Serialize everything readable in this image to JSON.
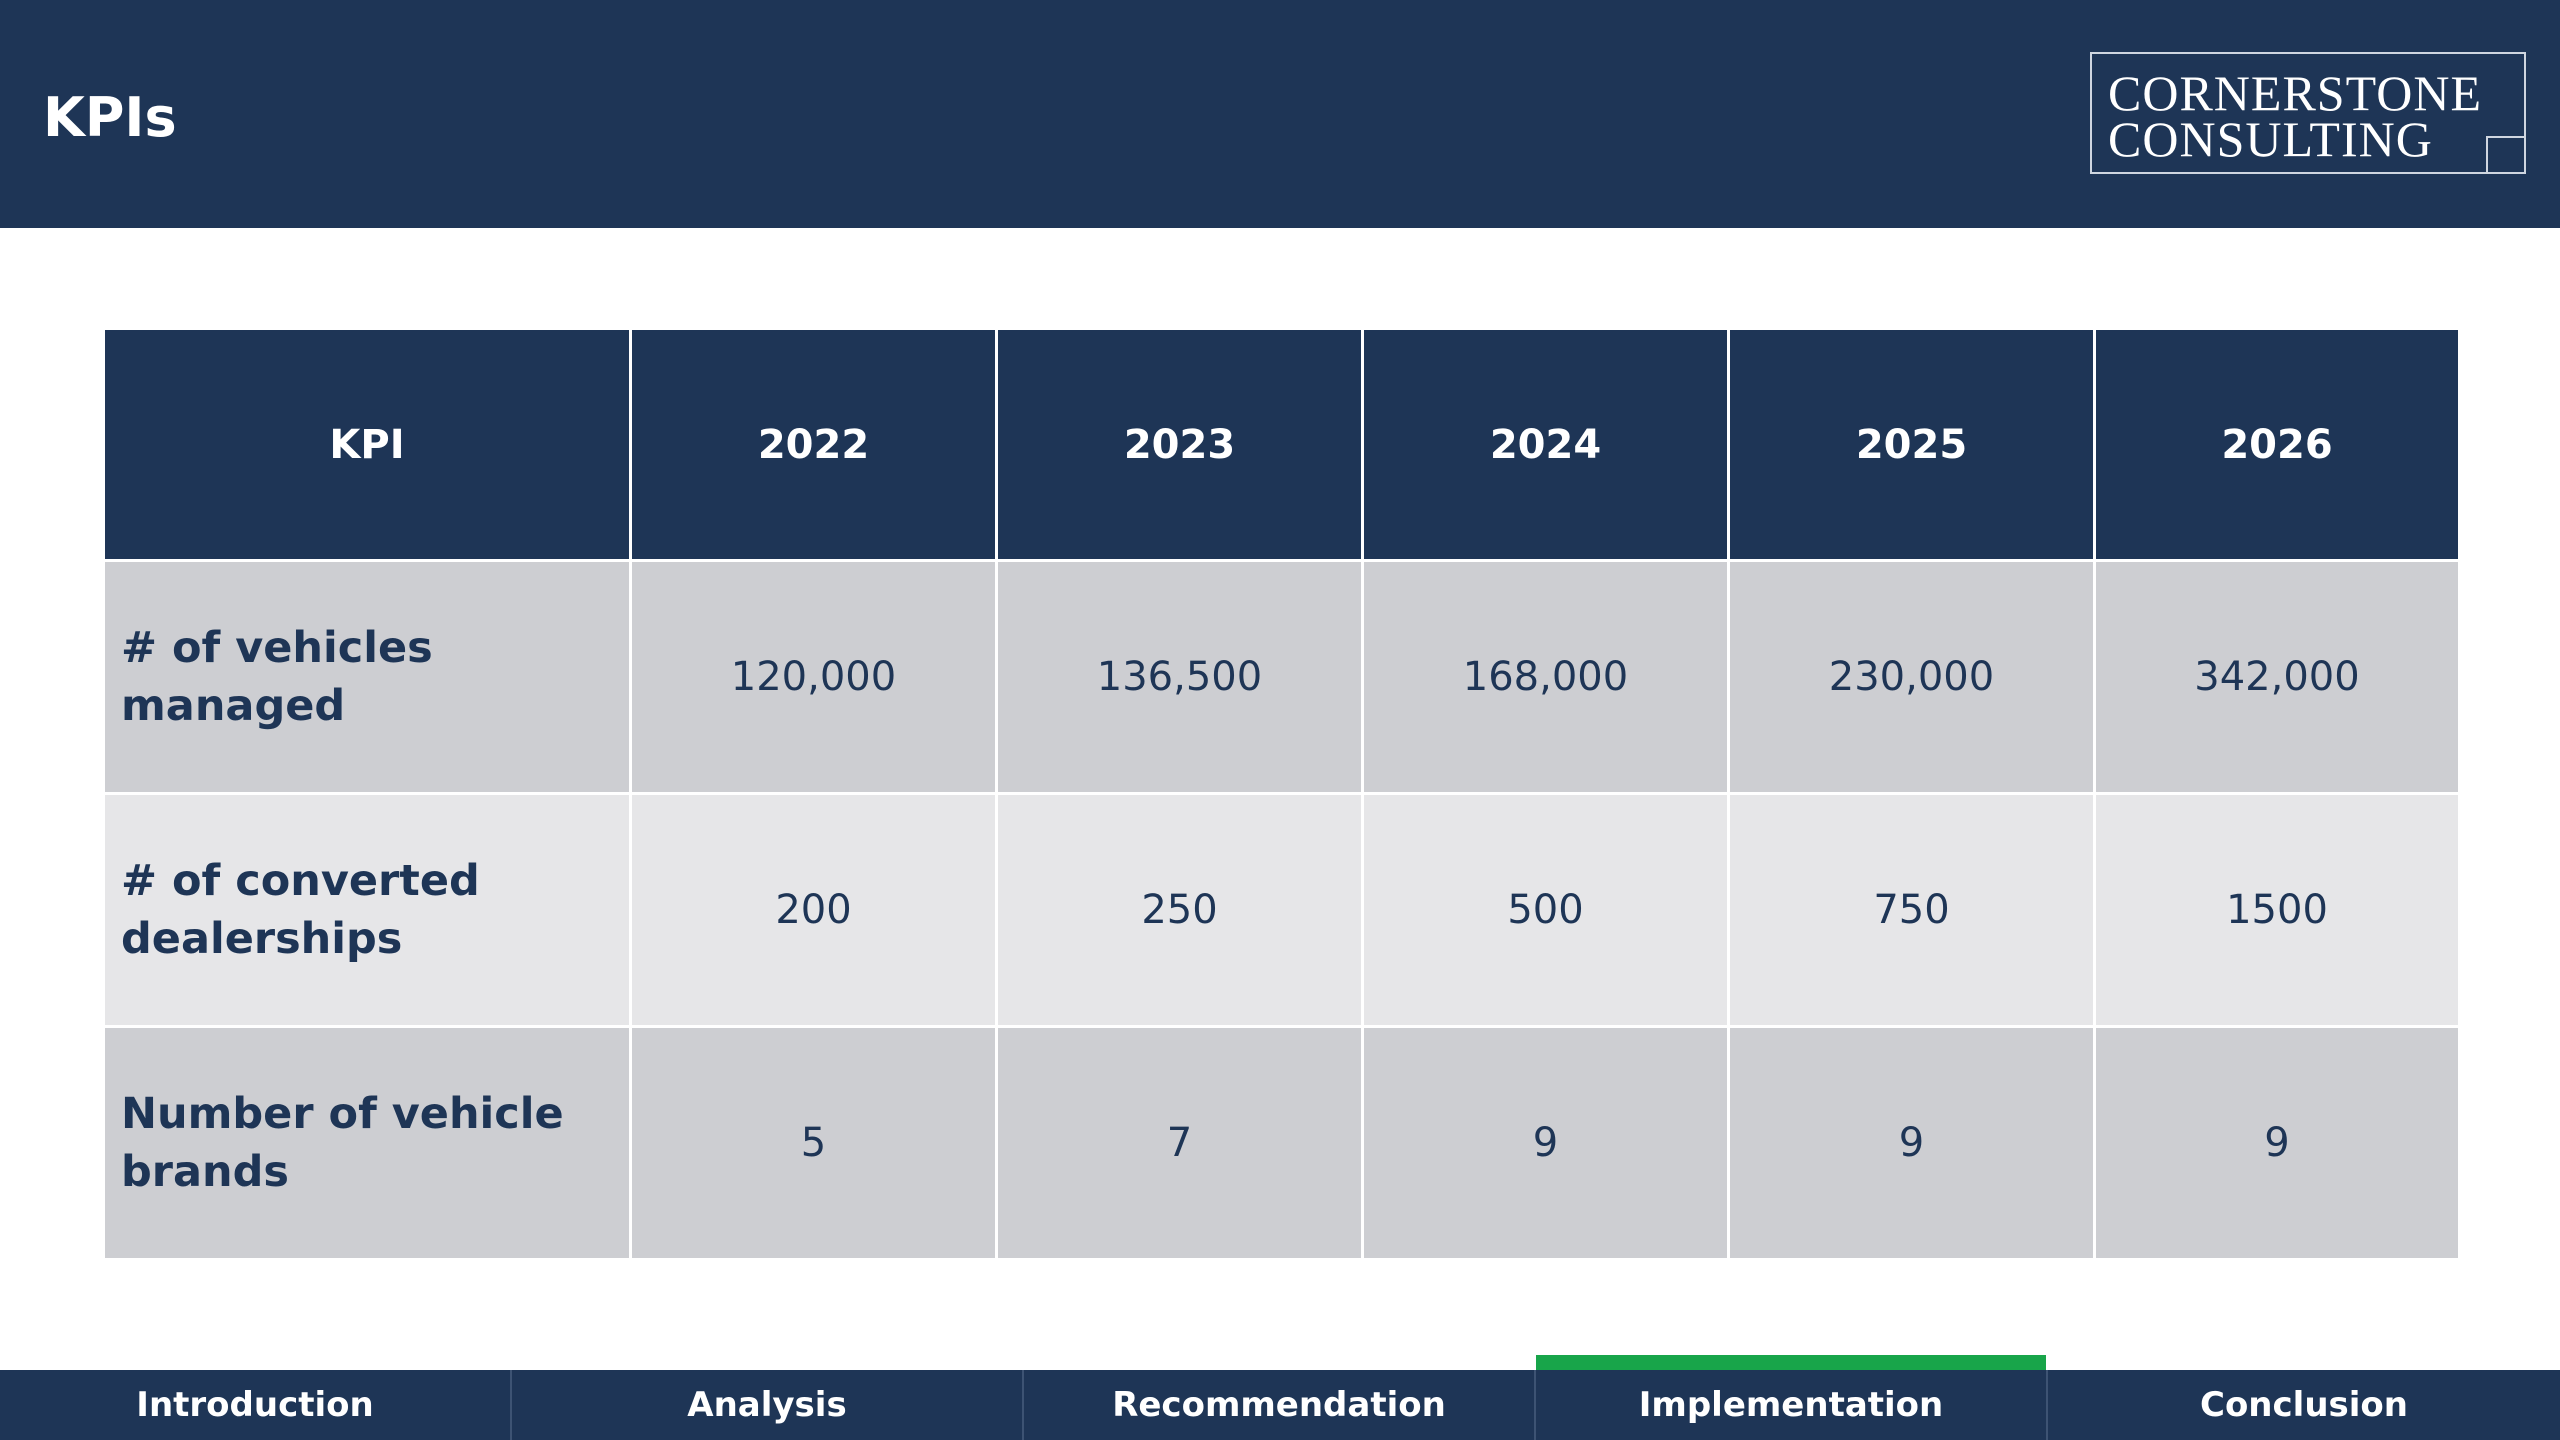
{
  "header": {
    "title": "KPIs",
    "logo_line1": "CORNERSTONE",
    "logo_line2": "CONSULTING"
  },
  "table": {
    "headers": [
      "KPI",
      "2022",
      "2023",
      "2024",
      "2025",
      "2026"
    ],
    "rows": [
      {
        "label": "# of vehicles managed",
        "values": [
          "120,000",
          "136,500",
          "168,000",
          "230,000",
          "342,000"
        ]
      },
      {
        "label": "# of converted dealerships",
        "values": [
          "200",
          "250",
          "500",
          "750",
          "1500"
        ]
      },
      {
        "label": "Number of vehicle brands",
        "values": [
          "5",
          "7",
          "9",
          "9",
          "9"
        ]
      }
    ]
  },
  "nav": {
    "tabs": [
      {
        "label": "Introduction",
        "active": false
      },
      {
        "label": "Analysis",
        "active": false
      },
      {
        "label": "Recommendation",
        "active": false
      },
      {
        "label": "Implementation",
        "active": true
      },
      {
        "label": "Conclusion",
        "active": false
      }
    ]
  },
  "colors": {
    "navy": "#1e3556",
    "row_dark": "#cdced2",
    "row_light": "#e6e6e8",
    "active_indicator": "#18a54a"
  }
}
